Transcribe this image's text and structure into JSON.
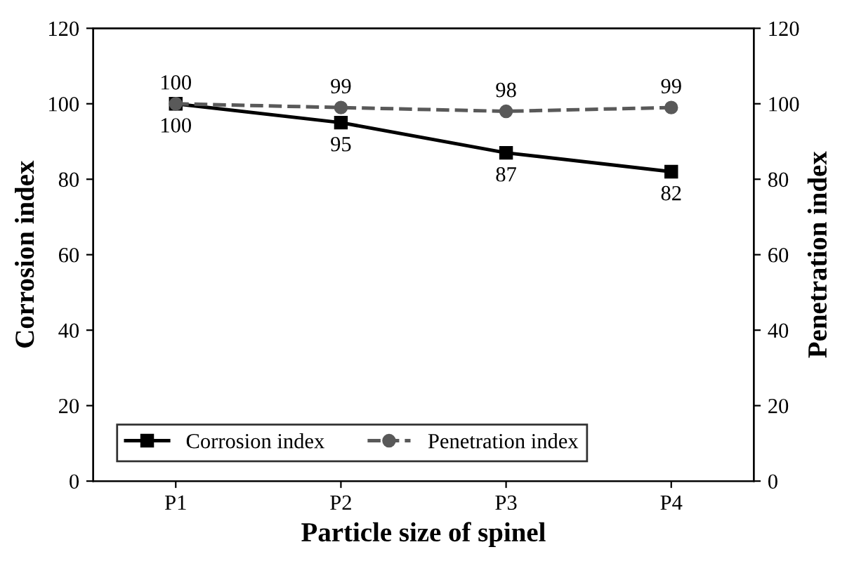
{
  "chart_data": {
    "type": "line",
    "xlabel": "Particle size of spinel",
    "ylabel": "Corrosion index",
    "y2label": "Penetration index",
    "categories": [
      "P1",
      "P2",
      "P3",
      "P4"
    ],
    "series": [
      {
        "name": "Corrosion index",
        "color": "#000000",
        "values": [
          100,
          95,
          87,
          82
        ],
        "marker": "square",
        "line_style": "solid"
      },
      {
        "name": "Penetration index",
        "color": "#595959",
        "values": [
          100,
          99,
          98,
          99
        ],
        "marker": "circle",
        "line_style": "dashed",
        "axis": "y2"
      }
    ],
    "ylim": [
      0,
      120
    ],
    "yticks": [
      0,
      20,
      40,
      60,
      80,
      100,
      120
    ],
    "y2lim": [
      0,
      120
    ],
    "y2ticks": [
      0,
      20,
      40,
      60,
      80,
      100,
      120
    ],
    "data_labels": true,
    "grid": false,
    "legend": "bottom left"
  }
}
